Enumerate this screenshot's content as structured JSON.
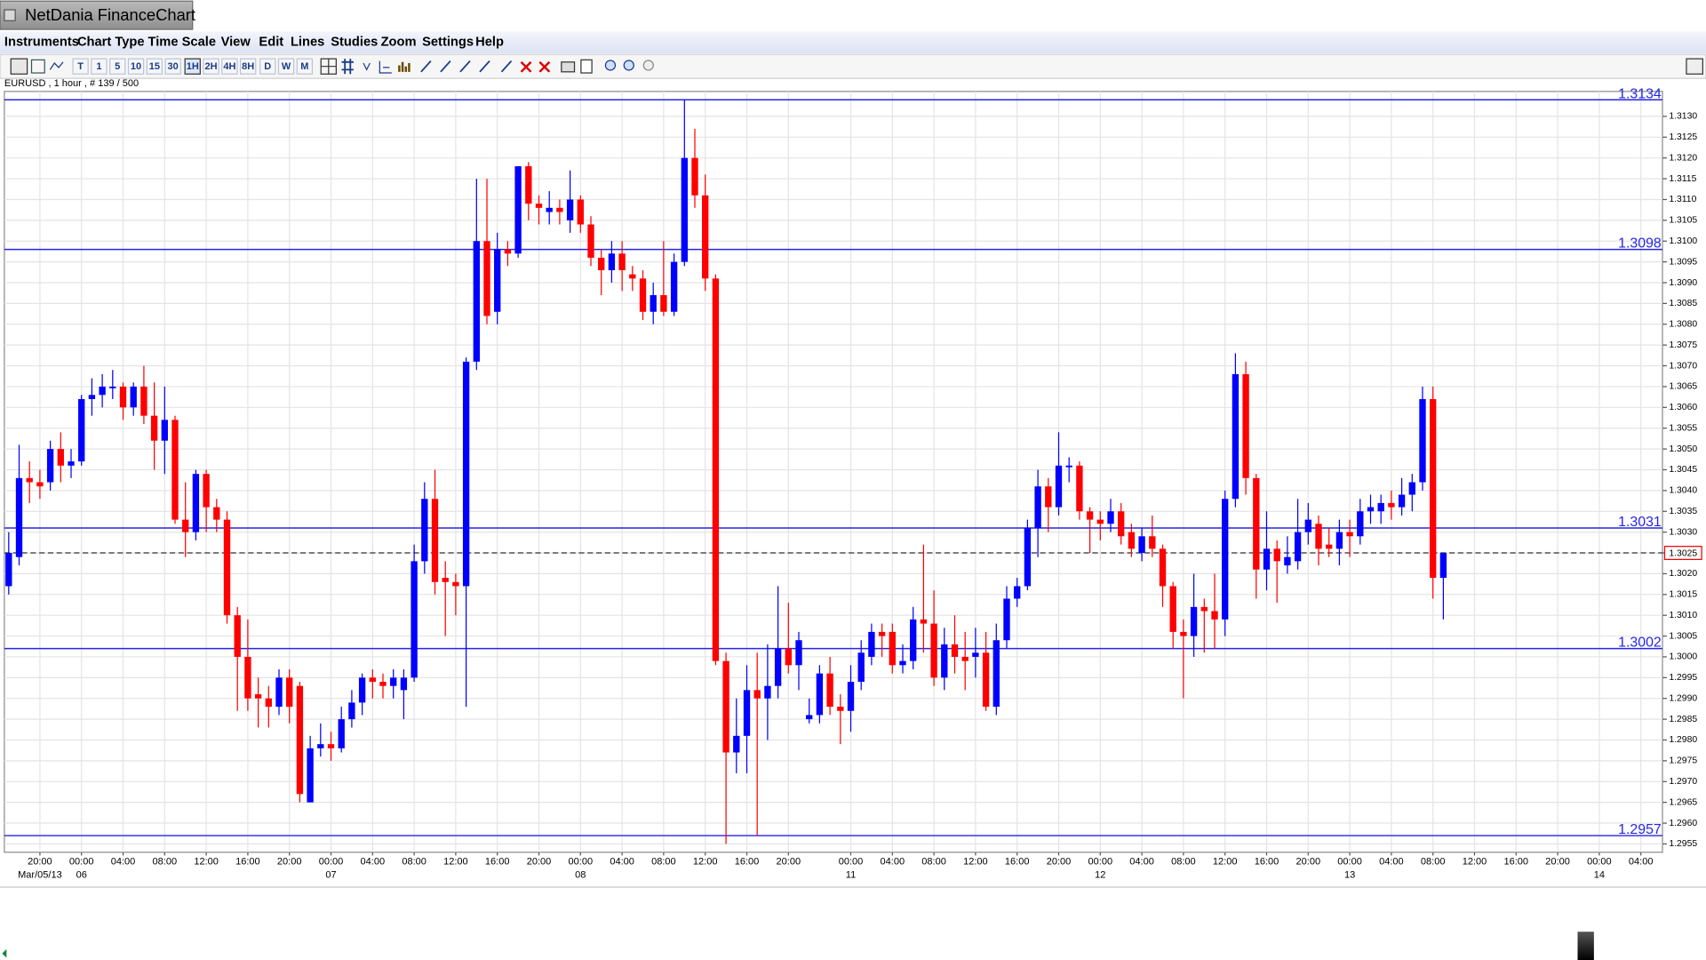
{
  "window": {
    "title": "NetDania FinanceChart"
  },
  "menu": [
    "Instruments",
    "Chart Type",
    "Time Scale",
    "View",
    "Edit",
    "Lines",
    "Studies",
    "Zoom",
    "Settings",
    "Help"
  ],
  "toolbar": [
    "T",
    "1",
    "5",
    "10",
    "15",
    "30",
    "1H",
    "2H",
    "4H",
    "8H",
    "D",
    "W",
    "M"
  ],
  "info": "EURUSD , 1 hour , # 139 / 500",
  "chart_data": {
    "type": "candlestick",
    "up_color": "#0000ff",
    "down_color": "#ff0000",
    "level_color": "#2525e6",
    "grid": true,
    "ylim": [
      1.2953,
      1.3136
    ],
    "yticks": [
      1.2955,
      {
        "value": 1.296,
        "label": "1.2960"
      },
      1.2965,
      {
        "value": 1.297,
        "label": "1.2970"
      },
      1.2975,
      {
        "value": 1.298,
        "label": "1.2980"
      },
      1.2985,
      {
        "value": 1.299,
        "label": "1.2990"
      },
      1.2995,
      {
        "value": 1.3,
        "label": "1.3000"
      },
      1.3005,
      {
        "value": 1.301,
        "label": "1.3010"
      },
      1.3015,
      {
        "value": 1.302,
        "label": "1.3020"
      },
      1.3025,
      {
        "value": 1.303,
        "label": "1.3030"
      },
      1.3035,
      {
        "value": 1.304,
        "label": "1.3040"
      },
      1.3045,
      {
        "value": 1.305,
        "label": "1.3050"
      },
      1.3055,
      {
        "value": 1.306,
        "label": "1.3060"
      },
      1.3065,
      {
        "value": 1.307,
        "label": "1.3070"
      },
      1.3075,
      {
        "value": 1.308,
        "label": "1.3080"
      },
      1.3085,
      {
        "value": 1.309,
        "label": "1.3090"
      },
      1.3095,
      {
        "value": 1.31,
        "label": "1.3100"
      },
      1.3105,
      {
        "value": 1.311,
        "label": "1.3110"
      },
      1.3115,
      {
        "value": 1.312,
        "label": "1.3120"
      },
      1.3125,
      {
        "value": 1.313,
        "label": "1.3130"
      }
    ],
    "levels": [
      1.3134,
      1.3098,
      1.3031,
      1.3002,
      1.2957
    ],
    "last": 1.3025,
    "categories": [
      null,
      null,
      null,
      "20:00",
      null,
      null,
      null,
      "00:00",
      null,
      null,
      null,
      "04:00",
      null,
      null,
      null,
      "08:00",
      null,
      null,
      null,
      "12:00",
      null,
      null,
      null,
      "16:00",
      null,
      null,
      null,
      "20:00",
      null,
      null,
      null,
      "00:00",
      null,
      null,
      null,
      "04:00",
      null,
      null,
      null,
      "08:00",
      null,
      null,
      null,
      "12:00",
      null,
      null,
      null,
      "16:00",
      null,
      null,
      null,
      "20:00",
      null,
      null,
      null,
      "00:00",
      null,
      null,
      null,
      "04:00",
      null,
      null,
      null,
      "08:00",
      null,
      null,
      null,
      "12:00",
      null,
      null,
      null,
      "16:00",
      null,
      null,
      null,
      "20:00",
      null,
      null,
      null,
      null,
      null,
      "00:00",
      null,
      null,
      null,
      "04:00",
      null,
      null,
      null,
      "08:00",
      null,
      null,
      null,
      "12:00",
      null,
      null,
      null,
      "16:00",
      null,
      null,
      null,
      "20:00",
      null,
      null,
      null,
      "00:00",
      null,
      null,
      null,
      "04:00",
      null,
      null,
      null,
      "08:00",
      null,
      null,
      null,
      "12:00",
      null,
      null,
      null,
      "16:00",
      null,
      null,
      null,
      "20:00",
      null,
      null,
      null,
      "00:00",
      null,
      null,
      null,
      "04:00",
      null,
      null,
      null,
      "08:00",
      null,
      null,
      null,
      "12:00",
      null,
      null,
      null,
      "16:00",
      null,
      null,
      null,
      "20:00",
      null,
      null,
      null,
      "00:00",
      null,
      null,
      null,
      "04:00",
      null,
      null
    ],
    "dates": [
      null,
      null,
      null,
      "Mar/05/13",
      null,
      null,
      null,
      "06",
      null,
      null,
      null,
      null,
      null,
      null,
      null,
      null,
      null,
      null,
      null,
      null,
      null,
      null,
      null,
      null,
      null,
      null,
      null,
      null,
      null,
      null,
      null,
      "07",
      null,
      null,
      null,
      null,
      null,
      null,
      null,
      null,
      null,
      null,
      null,
      null,
      null,
      null,
      null,
      null,
      null,
      null,
      null,
      null,
      null,
      null,
      null,
      "08",
      null,
      null,
      null,
      null,
      null,
      null,
      null,
      null,
      null,
      null,
      null,
      null,
      null,
      null,
      null,
      null,
      null,
      null,
      null,
      null,
      null,
      null,
      null,
      null,
      null,
      "11",
      null,
      null,
      null,
      null,
      null,
      null,
      null,
      null,
      null,
      null,
      null,
      null,
      null,
      null,
      null,
      null,
      null,
      null,
      null,
      null,
      null,
      null,
      null,
      "12",
      null,
      null,
      null,
      null,
      null,
      null,
      null,
      null,
      null,
      null,
      null,
      null,
      null,
      null,
      null,
      null,
      null,
      null,
      null,
      null,
      null,
      null,
      null,
      "13",
      null,
      null,
      null,
      null,
      null,
      null,
      null,
      null,
      null,
      null,
      null,
      null,
      null,
      null,
      null,
      null,
      null,
      null,
      null,
      null,
      null,
      null,
      null,
      "14",
      null,
      null,
      null,
      null,
      null,
      null
    ],
    "open": [
      1.3017,
      1.3024,
      1.3043,
      1.3042,
      1.3042,
      1.305,
      1.3046,
      1.3047,
      1.3062,
      1.3063,
      1.3065,
      1.3065,
      1.306,
      1.3065,
      1.3058,
      1.3052,
      1.3057,
      1.3033,
      1.303,
      1.3044,
      1.3036,
      1.3033,
      1.301,
      1.3,
      1.2991,
      1.299,
      1.2988,
      1.2995,
      1.2993,
      1.2965,
      1.2978,
      1.2979,
      1.2978,
      1.2985,
      1.2989,
      1.2995,
      1.2994,
      1.2993,
      1.2992,
      1.2995,
      1.3023,
      1.3038,
      1.3019,
      1.3018,
      1.3017,
      1.3071,
      1.31,
      1.3083,
      1.3098,
      1.3097,
      1.3118,
      1.3109,
      1.3107,
      1.3108,
      1.3105,
      1.311,
      1.3104,
      1.3096,
      1.3093,
      1.3097,
      1.3092,
      1.3091,
      1.3083,
      1.3087,
      1.3083,
      1.3095,
      1.312,
      1.3111,
      1.3091,
      1.2999,
      1.2977,
      1.2981,
      1.2992,
      1.299,
      1.2993,
      1.3002,
      1.2998,
      1.2985,
      1.2986,
      1.2996,
      1.2988,
      1.2987,
      1.2994,
      1.3,
      1.3006,
      1.3006,
      1.2998,
      1.2999,
      1.3009,
      1.3008,
      1.2995,
      1.3003,
      1.3,
      1.3,
      1.3001,
      1.2988,
      1.3004,
      1.3014,
      1.3017,
      1.3031,
      1.3041,
      1.3036,
      1.3046,
      1.3046,
      1.3035,
      1.3033,
      1.3032,
      1.3035,
      1.303,
      1.3025,
      1.3029,
      1.3026,
      1.3017,
      1.3006,
      1.3005,
      1.3012,
      1.3011,
      1.3009,
      1.3038,
      1.3068,
      1.3043,
      1.3021,
      1.3026,
      1.3022,
      1.3023,
      1.303,
      1.3032,
      1.3027,
      1.3026,
      1.303,
      1.3029,
      1.3035,
      1.3035,
      1.3037,
      1.3036,
      1.3039,
      1.3042,
      1.3062,
      1.3019,
      null,
      null,
      null,
      null,
      null,
      null,
      null,
      null,
      null,
      null,
      null,
      null,
      null,
      null,
      null,
      null,
      null,
      null,
      null,
      null,
      null
    ],
    "high": [
      1.303,
      1.3051,
      1.3047,
      1.3045,
      1.3052,
      1.3054,
      1.305,
      1.3063,
      1.3067,
      1.3068,
      1.3069,
      1.3066,
      1.3066,
      1.307,
      1.3066,
      1.3065,
      1.3058,
      1.3042,
      1.3045,
      1.3045,
      1.3038,
      1.3035,
      1.3012,
      1.3009,
      1.2995,
      1.2993,
      1.2997,
      1.2997,
      1.2994,
      1.2981,
      1.2984,
      1.2982,
      1.2988,
      1.2992,
      1.2996,
      1.2997,
      1.2996,
      1.2997,
      1.2997,
      1.3027,
      1.3042,
      1.3045,
      1.3023,
      1.302,
      1.3072,
      1.3115,
      1.3115,
      1.3102,
      1.31,
      1.3118,
      1.3119,
      1.3111,
      1.3112,
      1.311,
      1.3117,
      1.3111,
      1.3106,
      1.3098,
      1.31,
      1.31,
      1.3094,
      1.3093,
      1.309,
      1.31,
      1.3097,
      1.3134,
      1.3127,
      1.3116,
      1.3092,
      1.3001,
      1.299,
      1.2998,
      1.3001,
      1.3003,
      1.3017,
      1.3013,
      1.3006,
      1.299,
      1.2998,
      1.3,
      1.2991,
      1.2998,
      1.3004,
      1.3008,
      1.3008,
      1.3008,
      1.3003,
      1.3012,
      1.3027,
      1.3016,
      1.3007,
      1.301,
      1.3006,
      1.3007,
      1.3006,
      1.3008,
      1.3017,
      1.3019,
      1.3033,
      1.3045,
      1.3043,
      1.3054,
      1.3048,
      1.3047,
      1.3036,
      1.3035,
      1.3038,
      1.3037,
      1.3032,
      1.3031,
      1.3034,
      1.3027,
      1.3018,
      1.3009,
      1.302,
      1.3014,
      1.302,
      1.304,
      1.3073,
      1.3071,
      1.3044,
      1.3035,
      1.3028,
      1.3029,
      1.3038,
      1.3037,
      1.3034,
      1.3031,
      1.3033,
      1.3033,
      1.3038,
      1.3039,
      1.3039,
      1.304,
      1.3043,
      1.3044,
      1.3065,
      1.3065,
      1.3025,
      null,
      null,
      null,
      null,
      null,
      null,
      null,
      null,
      null,
      null,
      null,
      null,
      null,
      null,
      null,
      null,
      null,
      null,
      null,
      null,
      null
    ],
    "low": [
      1.3015,
      1.3022,
      1.3037,
      1.3038,
      1.304,
      1.3042,
      1.3043,
      1.3046,
      1.3058,
      1.306,
      1.3062,
      1.3057,
      1.3058,
      1.3056,
      1.3045,
      1.3044,
      1.3032,
      1.3024,
      1.3028,
      1.303,
      1.303,
      1.3008,
      1.2987,
      1.2987,
      1.2983,
      1.2983,
      1.2986,
      1.2984,
      1.2965,
      1.2965,
      1.2976,
      1.2975,
      1.2977,
      1.2983,
      1.2986,
      1.299,
      1.299,
      1.299,
      1.2985,
      1.2994,
      1.302,
      1.3015,
      1.3005,
      1.301,
      1.2988,
      1.3069,
      1.308,
      1.308,
      1.3094,
      1.3096,
      1.3105,
      1.3104,
      1.3104,
      1.3104,
      1.3102,
      1.3102,
      1.3094,
      1.3087,
      1.309,
      1.3088,
      1.3088,
      1.3081,
      1.308,
      1.3082,
      1.3082,
      1.3094,
      1.3108,
      1.3088,
      1.2998,
      1.2955,
      1.2972,
      1.2972,
      1.2957,
      1.298,
      1.299,
      1.2996,
      1.2992,
      1.2984,
      1.2984,
      1.2986,
      1.2979,
      1.2982,
      1.2992,
      1.2998,
      1.3,
      1.2996,
      1.2996,
      1.2997,
      1.3001,
      1.2993,
      1.2992,
      1.2996,
      1.2992,
      1.2995,
      1.2987,
      1.2986,
      1.3002,
      1.3012,
      1.3016,
      1.3024,
      1.303,
      1.3034,
      1.3042,
      1.3033,
      1.3025,
      1.3028,
      1.303,
      1.3027,
      1.3024,
      1.3023,
      1.3024,
      1.3012,
      1.3002,
      1.299,
      1.3,
      1.3001,
      1.3002,
      1.3005,
      1.3036,
      1.3039,
      1.3014,
      1.3016,
      1.3013,
      1.302,
      1.3021,
      1.3027,
      1.3022,
      1.3024,
      1.3022,
      1.3024,
      1.3027,
      1.3032,
      1.3032,
      1.3033,
      1.3034,
      1.3035,
      1.304,
      1.3014,
      1.3009,
      null,
      null,
      null,
      null,
      null,
      null,
      null,
      null,
      null,
      null,
      null,
      null,
      null,
      null,
      null,
      null,
      null,
      null,
      null,
      null,
      null
    ],
    "close": [
      1.3025,
      1.3043,
      1.3042,
      1.3041,
      1.305,
      1.3046,
      1.3047,
      1.3062,
      1.3063,
      1.3065,
      1.3065,
      1.306,
      1.3065,
      1.3058,
      1.3052,
      1.3057,
      1.3033,
      1.303,
      1.3044,
      1.3036,
      1.3033,
      1.301,
      1.3,
      1.299,
      1.299,
      1.2988,
      1.2995,
      1.2988,
      1.2967,
      1.2978,
      1.2979,
      1.2978,
      1.2985,
      1.2989,
      1.2995,
      1.2994,
      1.2993,
      1.2995,
      1.2995,
      1.3023,
      1.3038,
      1.3018,
      1.3018,
      1.3017,
      1.3071,
      1.31,
      1.3082,
      1.3098,
      1.3097,
      1.3118,
      1.3109,
      1.3108,
      1.3108,
      1.3107,
      1.311,
      1.3104,
      1.3096,
      1.3093,
      1.3097,
      1.3093,
      1.3091,
      1.3083,
      1.3087,
      1.3083,
      1.3095,
      1.312,
      1.3111,
      1.3091,
      1.2999,
      1.2977,
      1.2981,
      1.2992,
      1.299,
      1.2993,
      1.3002,
      1.2998,
      1.3004,
      1.2986,
      1.2996,
      1.2988,
      1.2987,
      1.2994,
      1.3001,
      1.3006,
      1.3005,
      1.2998,
      1.2999,
      1.3009,
      1.3008,
      1.2995,
      1.3003,
      1.3,
      1.2999,
      1.3001,
      1.2988,
      1.3004,
      1.3014,
      1.3017,
      1.3031,
      1.3041,
      1.3036,
      1.3046,
      1.3046,
      1.3035,
      1.3033,
      1.3032,
      1.3035,
      1.3029,
      1.3026,
      1.3029,
      1.3026,
      1.3017,
      1.3006,
      1.3005,
      1.3012,
      1.3011,
      1.3009,
      1.3038,
      1.3068,
      1.3043,
      1.3021,
      1.3026,
      1.3023,
      1.3024,
      1.303,
      1.3033,
      1.3026,
      1.3026,
      1.303,
      1.3029,
      1.3035,
      1.3036,
      1.3037,
      1.3036,
      1.3039,
      1.3042,
      1.3062,
      1.3019,
      1.3025,
      null,
      null,
      null,
      null,
      null,
      null,
      null,
      null,
      null,
      null,
      null,
      null,
      null,
      null,
      null,
      null,
      null,
      null,
      null,
      null,
      null
    ]
  }
}
